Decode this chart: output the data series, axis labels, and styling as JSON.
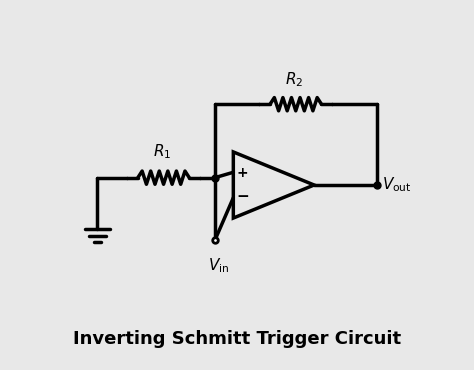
{
  "bg_color": "#e8e8e8",
  "line_color": "#000000",
  "lw": 2.5,
  "title": "Inverting Schmitt Trigger Circuit",
  "title_fontsize": 13,
  "title_fontweight": "bold",
  "R1_label": "$R_1$",
  "R2_label": "$R_2$",
  "Vin_label": "$V_{\\mathrm{in}}$",
  "Vout_label": "$V_{\\mathrm{out}}$"
}
